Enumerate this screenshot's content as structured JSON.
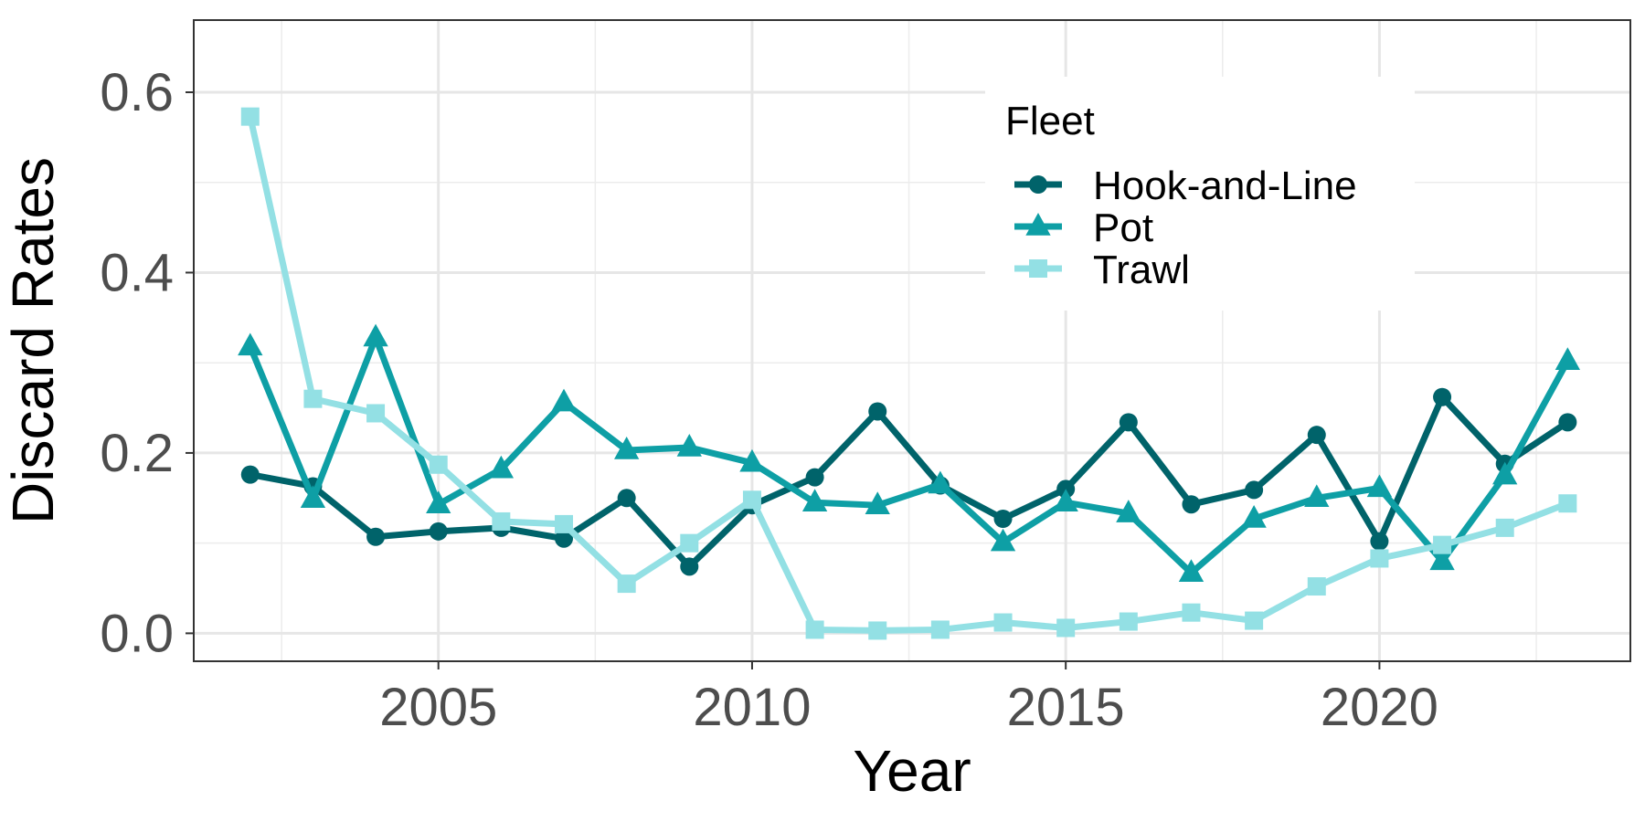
{
  "chart_data": {
    "type": "line",
    "title": "",
    "xlabel": "Year",
    "ylabel": "Discard Rates",
    "xlim": [
      2001.1,
      2024.0
    ],
    "ylim": [
      -0.031,
      0.68
    ],
    "x_ticks": [
      2005,
      2010,
      2015,
      2020
    ],
    "y_ticks": [
      0.0,
      0.2,
      0.4,
      0.6
    ],
    "x_tick_labels": [
      "2005",
      "2010",
      "2015",
      "2020"
    ],
    "y_tick_labels": [
      "0.0",
      "0.2",
      "0.4",
      "0.6"
    ],
    "grid": true,
    "legend": {
      "title": "Fleet",
      "position": "top-right"
    },
    "x": [
      2002,
      2003,
      2004,
      2005,
      2006,
      2007,
      2008,
      2009,
      2010,
      2011,
      2012,
      2013,
      2014,
      2015,
      2016,
      2017,
      2018,
      2019,
      2020,
      2021,
      2022,
      2023
    ],
    "series": [
      {
        "name": "Hook-and-Line",
        "color": "#00636A",
        "marker": "circle",
        "values": [
          0.176,
          0.163,
          0.107,
          0.113,
          0.117,
          0.105,
          0.15,
          0.074,
          0.142,
          0.173,
          0.246,
          0.164,
          0.127,
          0.16,
          0.234,
          0.143,
          0.159,
          0.22,
          0.102,
          0.262,
          0.188,
          0.234
        ]
      },
      {
        "name": "Pot",
        "color": "#0E9FA5",
        "marker": "triangle",
        "values": [
          0.318,
          0.149,
          0.328,
          0.143,
          0.182,
          0.256,
          0.203,
          0.206,
          0.189,
          0.145,
          0.142,
          0.165,
          0.101,
          0.145,
          0.133,
          0.067,
          0.127,
          0.15,
          0.161,
          0.08,
          0.175,
          0.302
        ]
      },
      {
        "name": "Trawl",
        "color": "#93E0E4",
        "marker": "square",
        "values": [
          0.573,
          0.26,
          0.244,
          0.187,
          0.124,
          0.121,
          0.055,
          0.1,
          0.148,
          0.004,
          0.003,
          0.004,
          0.012,
          0.006,
          0.013,
          0.023,
          0.014,
          0.052,
          0.083,
          0.098,
          0.117,
          0.144
        ]
      }
    ]
  }
}
